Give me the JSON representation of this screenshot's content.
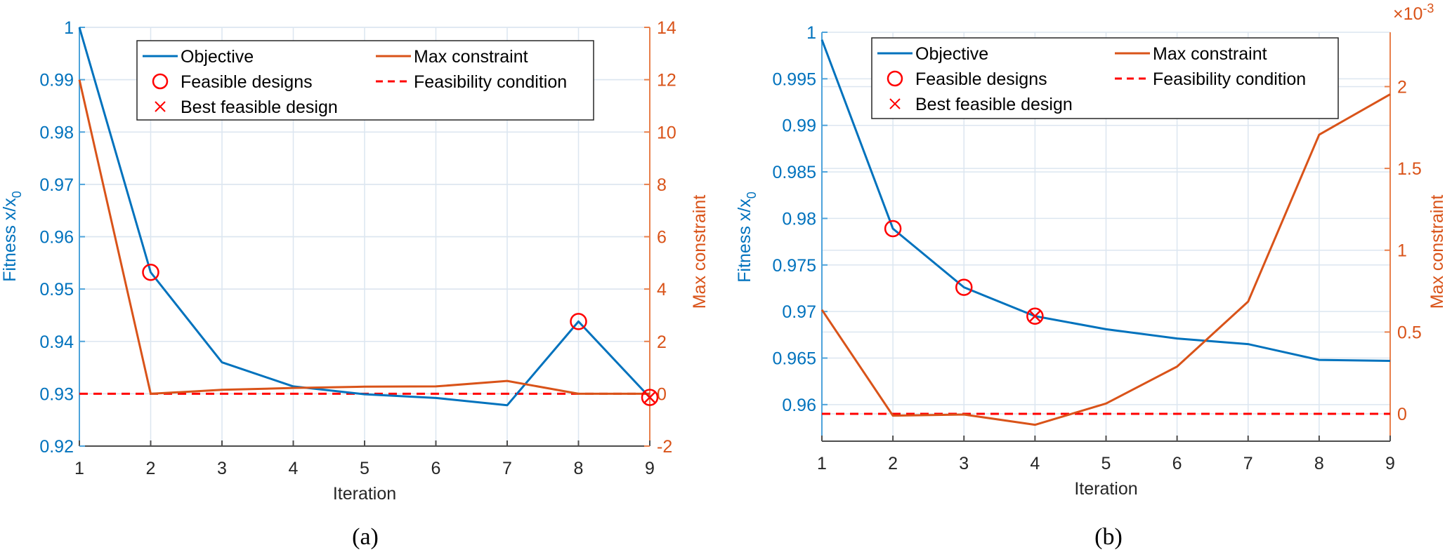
{
  "colors": {
    "objective": "#0072BD",
    "constraint": "#D95319",
    "feasibility": "#FF0000",
    "marker": "#FF0000",
    "grid": "#DCE6F0",
    "left_axis": "#0072BD",
    "right_axis": "#D95319",
    "x_axis": "#4D4D4D"
  },
  "chart_data": [
    {
      "id": "a",
      "type": "line",
      "caption": "(a)",
      "xlabel": "Iteration",
      "ylabel_left": "Fitness x/x",
      "ylabel_left_sub": "0",
      "ylabel_right": "Max constraint",
      "right_exponent": "",
      "x": [
        1,
        2,
        3,
        4,
        5,
        6,
        7,
        8,
        9
      ],
      "xlim": [
        1,
        9
      ],
      "xticks": [
        "1",
        "2",
        "3",
        "4",
        "5",
        "6",
        "7",
        "8",
        "9"
      ],
      "ylim_left": [
        0.92,
        1.0
      ],
      "yticks_left": [
        "0.92",
        "0.93",
        "0.94",
        "0.95",
        "0.96",
        "0.97",
        "0.98",
        "0.99",
        "1"
      ],
      "ytick_values_left": [
        0.92,
        0.93,
        0.94,
        0.95,
        0.96,
        0.97,
        0.98,
        0.99,
        1.0
      ],
      "ylim_right": [
        -2,
        14
      ],
      "yticks_right": [
        "-2",
        "0",
        "2",
        "4",
        "6",
        "8",
        "10",
        "12",
        "14"
      ],
      "ytick_values_right": [
        -2,
        0,
        2,
        4,
        6,
        8,
        10,
        12,
        14
      ],
      "grid": true,
      "series": [
        {
          "name": "Objective",
          "axis": "left",
          "values": [
            1.0,
            0.9532,
            0.936,
            0.9314,
            0.9299,
            0.9292,
            0.9278,
            0.9438,
            0.9293
          ]
        },
        {
          "name": "Max constraint",
          "axis": "right",
          "values": [
            12,
            0,
            0.15,
            0.22,
            0.27,
            0.28,
            0.49,
            0,
            0
          ]
        }
      ],
      "feasible_designs": {
        "name": "Feasible designs",
        "iterations": [
          2,
          8,
          9
        ]
      },
      "best_feasible": {
        "name": "Best feasible design",
        "iteration": 9
      },
      "feasibility_condition": {
        "name": "Feasibility condition",
        "value": 0
      },
      "legend": {
        "placement": "top-center",
        "entries": [
          "Objective",
          "Max constraint",
          "Feasible designs",
          "Feasibility condition",
          "Best feasible design"
        ]
      }
    },
    {
      "id": "b",
      "type": "line",
      "caption": "(b)",
      "xlabel": "Iteration",
      "ylabel_left": "Fitness x/x",
      "ylabel_left_sub": "0",
      "ylabel_right": "Max constraint",
      "right_exponent": "×10",
      "right_exponent_sup": "-3",
      "x": [
        1,
        2,
        3,
        4,
        5,
        6,
        7,
        8,
        9
      ],
      "xlim": [
        1,
        9
      ],
      "xticks": [
        "1",
        "2",
        "3",
        "4",
        "5",
        "6",
        "7",
        "8",
        "9"
      ],
      "ylim_left": [
        0.95607,
        1.0
      ],
      "yticks_left": [
        "0.96",
        "0.965",
        "0.97",
        "0.975",
        "0.98",
        "0.985",
        "0.99",
        "0.995",
        "1"
      ],
      "ytick_values_left": [
        0.96,
        0.965,
        0.97,
        0.975,
        0.98,
        0.985,
        0.99,
        0.995,
        1.0
      ],
      "ylim_right": [
        -0.167,
        2.332
      ],
      "yticks_right": [
        "0",
        "0.5",
        "1",
        "1.5",
        "2"
      ],
      "ytick_values_right": [
        0,
        0.5,
        1,
        1.5,
        2
      ],
      "right_scale_note": "values in units of 1e-3",
      "grid": true,
      "series": [
        {
          "name": "Objective",
          "axis": "left",
          "values": [
            0.9992,
            0.9789,
            0.9726,
            0.9695,
            0.9681,
            0.9671,
            0.9665,
            0.9648,
            0.9647
          ]
        },
        {
          "name": "Max constraint",
          "axis": "right",
          "values": [
            0.636,
            -0.011,
            -0.004,
            -0.067,
            0.063,
            0.289,
            0.686,
            1.706,
            1.953
          ]
        }
      ],
      "feasible_designs": {
        "name": "Feasible designs",
        "iterations": [
          2,
          3,
          4
        ]
      },
      "best_feasible": {
        "name": "Best feasible design",
        "iteration": 4
      },
      "feasibility_condition": {
        "name": "Feasibility condition",
        "value": 0
      },
      "legend": {
        "placement": "top-center",
        "entries": [
          "Objective",
          "Max constraint",
          "Feasible designs",
          "Feasibility condition",
          "Best feasible design"
        ]
      }
    }
  ]
}
